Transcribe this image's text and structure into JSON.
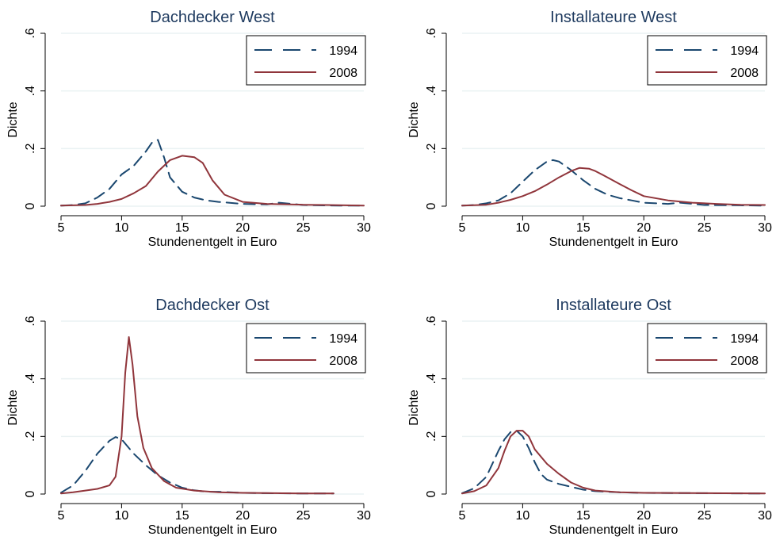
{
  "colors": {
    "series_1994": "#1a476f",
    "series_2008": "#90353b",
    "grid": "#eaf2f3",
    "title": "#1e3a5f"
  },
  "chart_data": [
    {
      "type": "line",
      "title": "Dachdecker West",
      "xlabel": "Stundenentgelt in Euro",
      "ylabel": "Dichte",
      "xlim": [
        5,
        30
      ],
      "ylim": [
        0,
        0.6
      ],
      "xticks": [
        "5",
        "10",
        "15",
        "20",
        "25",
        "30"
      ],
      "yticks": [
        "0",
        ".2",
        ".4",
        ".6"
      ],
      "legend_position": "top-right",
      "grid": true,
      "series": [
        {
          "name": "1994",
          "style": "dashed",
          "x": [
            5,
            6,
            7,
            8,
            9,
            10,
            11,
            12,
            12.5,
            13,
            13.5,
            14,
            15,
            16,
            17,
            18,
            20,
            22,
            23,
            25,
            28,
            30
          ],
          "y": [
            0.002,
            0.004,
            0.01,
            0.03,
            0.06,
            0.11,
            0.14,
            0.19,
            0.22,
            0.23,
            0.17,
            0.1,
            0.05,
            0.03,
            0.02,
            0.015,
            0.008,
            0.006,
            0.012,
            0.004,
            0.002,
            0.002
          ]
        },
        {
          "name": "2008",
          "style": "solid",
          "x": [
            5,
            7,
            8,
            9,
            10,
            11,
            12,
            13,
            14,
            15,
            16,
            16.7,
            17.5,
            18.5,
            20,
            22,
            25,
            27,
            30
          ],
          "y": [
            0.002,
            0.004,
            0.008,
            0.015,
            0.025,
            0.045,
            0.07,
            0.12,
            0.16,
            0.175,
            0.17,
            0.15,
            0.09,
            0.04,
            0.015,
            0.008,
            0.005,
            0.004,
            0.002
          ]
        }
      ]
    },
    {
      "type": "line",
      "title": "Installateure West",
      "xlabel": "Stundenentgelt in Euro",
      "ylabel": "Dichte",
      "xlim": [
        5,
        30
      ],
      "ylim": [
        0,
        0.6
      ],
      "xticks": [
        "5",
        "10",
        "15",
        "20",
        "25",
        "30"
      ],
      "yticks": [
        "0",
        ".2",
        ".4",
        ".6"
      ],
      "legend_position": "top-right",
      "grid": true,
      "series": [
        {
          "name": "1994",
          "style": "dashed",
          "x": [
            5,
            6,
            7,
            8,
            9,
            10,
            11,
            12,
            12.5,
            13,
            14,
            15,
            16,
            17,
            18,
            19,
            20,
            22,
            23,
            25,
            28,
            30
          ],
          "y": [
            0.002,
            0.004,
            0.01,
            0.02,
            0.045,
            0.085,
            0.125,
            0.155,
            0.16,
            0.155,
            0.125,
            0.09,
            0.06,
            0.04,
            0.028,
            0.02,
            0.012,
            0.008,
            0.012,
            0.004,
            0.003,
            0.002
          ]
        },
        {
          "name": "2008",
          "style": "solid",
          "x": [
            5,
            7,
            8,
            9,
            10,
            11,
            12,
            13,
            14,
            14.7,
            15.5,
            16,
            17,
            18,
            19,
            20,
            22,
            24,
            26,
            28,
            30
          ],
          "y": [
            0.002,
            0.005,
            0.012,
            0.022,
            0.035,
            0.052,
            0.075,
            0.1,
            0.122,
            0.133,
            0.13,
            0.122,
            0.1,
            0.077,
            0.055,
            0.035,
            0.02,
            0.012,
            0.008,
            0.005,
            0.004
          ]
        }
      ]
    },
    {
      "type": "line",
      "title": "Dachdecker Ost",
      "xlabel": "Stundenentgelt in Euro",
      "ylabel": "Dichte",
      "xlim": [
        5,
        30
      ],
      "ylim": [
        0,
        0.6
      ],
      "xticks": [
        "5",
        "10",
        "15",
        "20",
        "25",
        "30"
      ],
      "yticks": [
        "0",
        ".2",
        ".4",
        ".6"
      ],
      "legend_position": "top-right",
      "grid": true,
      "series": [
        {
          "name": "1994",
          "style": "dashed",
          "x": [
            5,
            6,
            7,
            8,
            9,
            9.5,
            10,
            11,
            12,
            13,
            14,
            15,
            16,
            17,
            18,
            20,
            22,
            25,
            27.5
          ],
          "y": [
            0.005,
            0.03,
            0.08,
            0.14,
            0.185,
            0.198,
            0.19,
            0.14,
            0.1,
            0.065,
            0.04,
            0.022,
            0.013,
            0.008,
            0.008,
            0.004,
            0.003,
            0.002,
            0.002
          ]
        },
        {
          "name": "2008",
          "style": "solid",
          "x": [
            5,
            6,
            7,
            8,
            9,
            9.5,
            10,
            10.3,
            10.6,
            10.9,
            11.3,
            11.8,
            12.5,
            13.5,
            14.5,
            16,
            18,
            20,
            25,
            27.5
          ],
          "y": [
            0.002,
            0.006,
            0.012,
            0.018,
            0.03,
            0.06,
            0.2,
            0.42,
            0.545,
            0.45,
            0.27,
            0.16,
            0.09,
            0.045,
            0.022,
            0.012,
            0.006,
            0.004,
            0.002,
            0.002
          ]
        }
      ]
    },
    {
      "type": "line",
      "title": "Installateure Ost",
      "xlabel": "Stundenentgelt in Euro",
      "ylabel": "Dichte",
      "xlim": [
        5,
        30
      ],
      "ylim": [
        0,
        0.6
      ],
      "xticks": [
        "5",
        "10",
        "15",
        "20",
        "25",
        "30"
      ],
      "yticks": [
        "0",
        ".2",
        ".4",
        ".6"
      ],
      "legend_position": "top-right",
      "grid": true,
      "series": [
        {
          "name": "1994",
          "style": "dashed",
          "x": [
            5,
            6,
            7,
            8,
            8.5,
            9,
            9.5,
            10,
            10.5,
            11,
            11.5,
            12,
            13,
            14,
            15,
            16,
            18,
            20,
            25,
            30
          ],
          "y": [
            0.003,
            0.02,
            0.06,
            0.15,
            0.19,
            0.215,
            0.22,
            0.2,
            0.16,
            0.11,
            0.07,
            0.05,
            0.035,
            0.025,
            0.015,
            0.01,
            0.006,
            0.004,
            0.003,
            0.002
          ]
        },
        {
          "name": "2008",
          "style": "solid",
          "x": [
            5,
            6,
            7,
            8,
            8.5,
            9,
            9.5,
            10,
            10.5,
            11,
            12,
            13,
            14,
            15,
            16,
            18,
            20,
            25,
            30
          ],
          "y": [
            0.002,
            0.01,
            0.03,
            0.09,
            0.15,
            0.2,
            0.22,
            0.22,
            0.2,
            0.155,
            0.105,
            0.07,
            0.04,
            0.022,
            0.012,
            0.006,
            0.004,
            0.003,
            0.002
          ]
        }
      ]
    }
  ]
}
